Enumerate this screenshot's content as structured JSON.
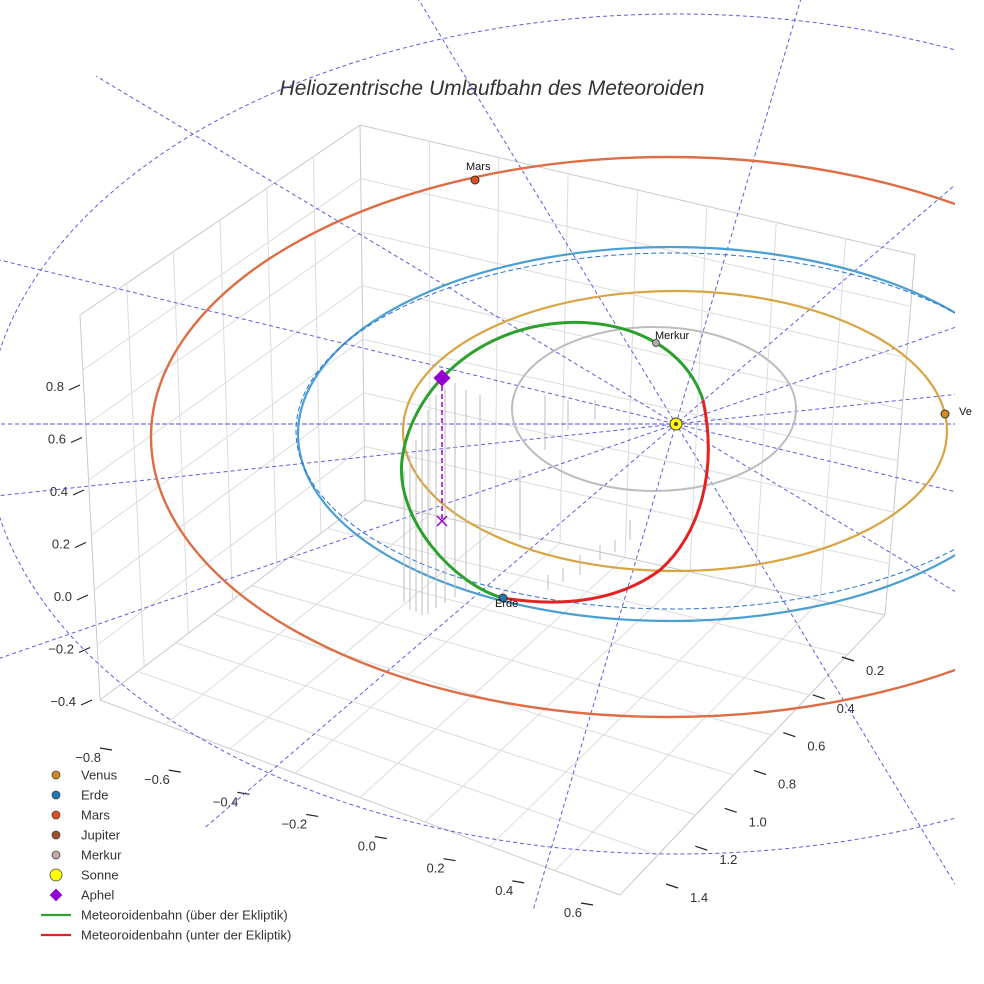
{
  "chart_data": {
    "type": "3d-orbit",
    "title": "Heliozentrische Umlaufbahn des Meteoroiden",
    "axes": {
      "x": {
        "ticks": [
          -0.8,
          -0.6,
          -0.4,
          -0.2,
          0.0,
          0.2,
          0.4,
          0.6
        ],
        "tick_labels": [
          "−0.8",
          "−0.6",
          "−0.4",
          "−0.2",
          "0.0",
          "0.2",
          "0.4",
          "0.6"
        ]
      },
      "y": {
        "ticks": [
          0.2,
          0.4,
          0.6,
          0.8,
          1.0,
          1.2,
          1.4
        ],
        "tick_labels": [
          "0.2",
          "0.4",
          "0.6",
          "0.8",
          "1.0",
          "1.2",
          "1.4"
        ]
      },
      "z": {
        "ticks": [
          -0.4,
          -0.2,
          0.0,
          0.2,
          0.4,
          0.6,
          0.8
        ],
        "tick_labels": [
          "−0.4",
          "−0.2",
          "0.0",
          "0.2",
          "0.4",
          "0.6",
          "0.8"
        ]
      }
    },
    "planets": [
      {
        "name": "Venus",
        "label": "Ve",
        "color": "#d38a1e",
        "orbit_color": "#d9a443"
      },
      {
        "name": "Erde",
        "label": "Erde",
        "color": "#1f77b4",
        "orbit_color": "#4c9fd1"
      },
      {
        "name": "Mars",
        "label": "Mars",
        "color": "#e0501e",
        "orbit_color": "#dd6d45"
      },
      {
        "name": "Jupiter",
        "label": "",
        "color": "#a0522d",
        "orbit_color": "#a0522d"
      },
      {
        "name": "Merkur",
        "label": "Merkur",
        "color": "#b8a8a0",
        "orbit_color": "#bdbdbd"
      }
    ],
    "sun": {
      "name": "Sonne",
      "color": "#ffff00"
    },
    "aphel": {
      "name": "Aphel",
      "color": "#9400d3"
    },
    "meteoroid": {
      "above_label": "Meteoroidenbahn (über der Ekliptik)",
      "below_label": "Meteoroidenbahn (unter der Ekliptik)",
      "above_color": "#2ca02c",
      "below_color": "#e32222"
    },
    "reference_line_color": "#4b4bdb"
  },
  "legend": [
    {
      "label": "Venus",
      "color": "#d38a1e",
      "kind": "dot"
    },
    {
      "label": "Erde",
      "color": "#1f77b4",
      "kind": "dot"
    },
    {
      "label": "Mars",
      "color": "#e0501e",
      "kind": "dot"
    },
    {
      "label": "Jupiter",
      "color": "#a0522d",
      "kind": "dot"
    },
    {
      "label": "Merkur",
      "color": "#c0aca4",
      "kind": "dot"
    },
    {
      "label": "Sonne",
      "color": "#ffff00",
      "kind": "bigdot"
    },
    {
      "label": "Aphel",
      "color": "#9400d3",
      "kind": "diamond"
    },
    {
      "label": "Meteoroidenbahn (über der Ekliptik)",
      "color": "#2ca02c",
      "kind": "line"
    },
    {
      "label": "Meteoroidenbahn (unter der Ekliptik)",
      "color": "#e32222",
      "kind": "line"
    }
  ]
}
